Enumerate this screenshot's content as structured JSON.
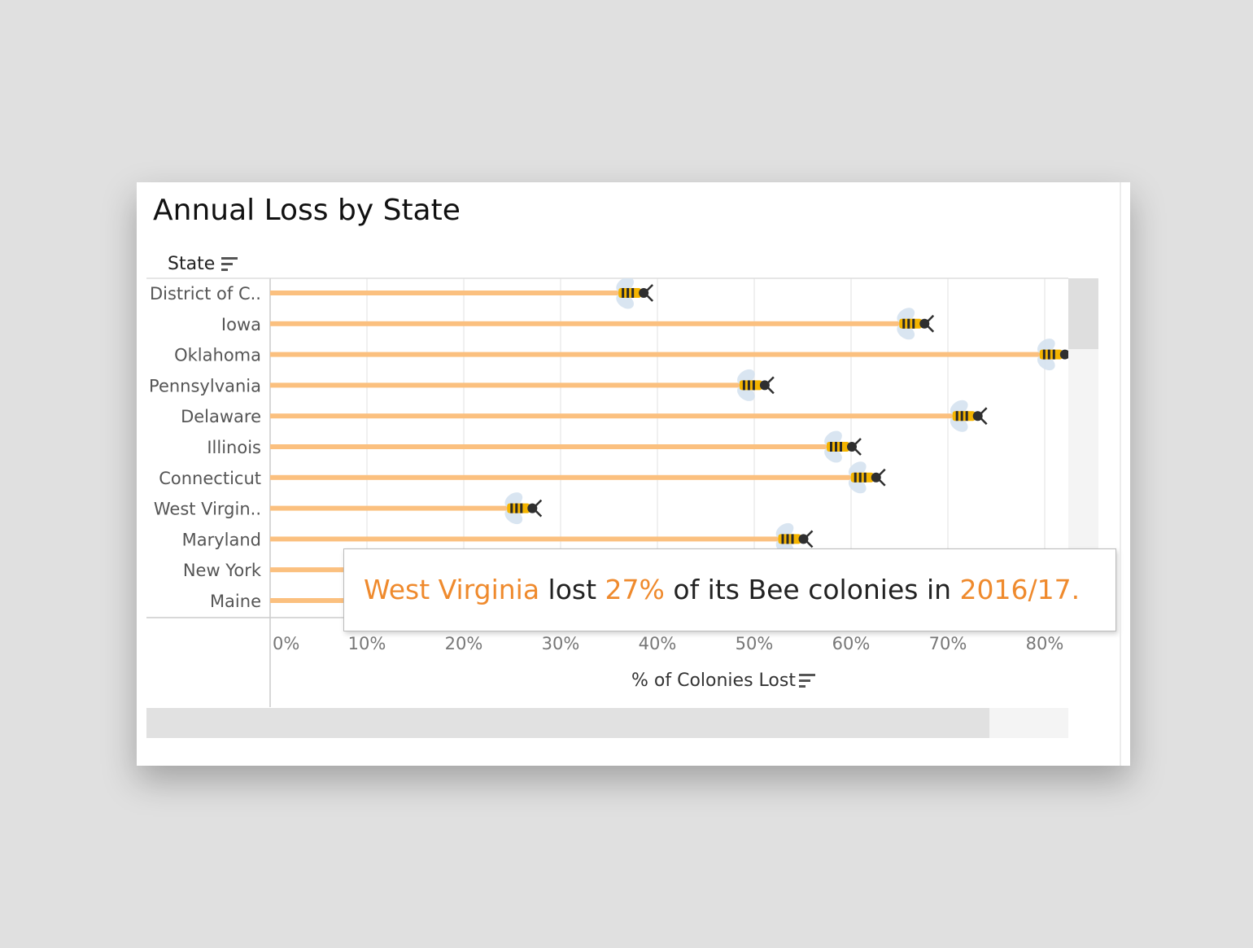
{
  "title": "Annual Loss by State",
  "state_header": "State",
  "sort_icon": "sort-descending-icon",
  "bee_icon": "bee-icon",
  "callout": {
    "state": "West Virginia",
    "text1": " lost ",
    "value": "27%",
    "text2": " of its Bee colonies in ",
    "period": "2016/17."
  },
  "colors": {
    "bar": "#fbc07f",
    "highlight": "#ef8a2d",
    "grid": "#ececec"
  },
  "chart_data": {
    "type": "bar",
    "orientation": "horizontal",
    "title": "Annual Loss by State",
    "xlabel": "% of Colonies Lost",
    "ylabel": "State",
    "xlim": [
      0,
      82
    ],
    "x_ticks": [
      0,
      10,
      20,
      30,
      40,
      50,
      60,
      70,
      80
    ],
    "x_tick_labels": [
      "0%",
      "10%",
      "20%",
      "30%",
      "40%",
      "50%",
      "60%",
      "70%",
      "80%"
    ],
    "grid": true,
    "categories": [
      "District of C..",
      "Iowa",
      "Oklahoma",
      "Pennsylvania",
      "Delaware",
      "Illinois",
      "Connecticut",
      "West Virgin..",
      "Maryland",
      "New York",
      "Maine"
    ],
    "values": [
      38.5,
      67.5,
      82,
      51,
      73,
      60,
      62.5,
      27,
      55,
      45,
      45
    ]
  }
}
